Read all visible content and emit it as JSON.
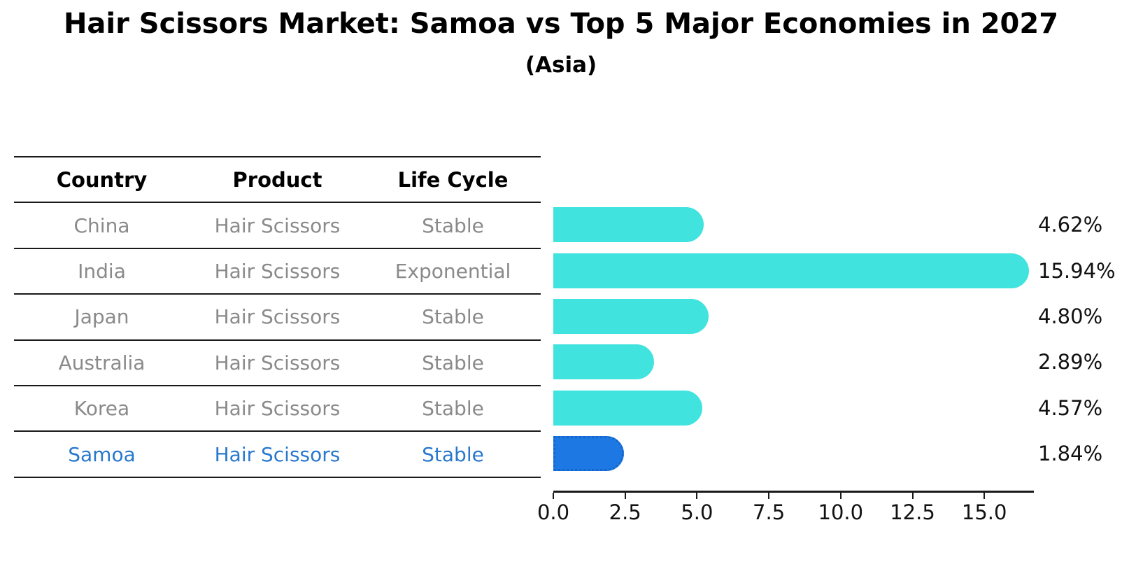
{
  "title": "Hair Scissors Market: Samoa vs Top 5 Major Economies in 2027",
  "subtitle": "(Asia)",
  "table": {
    "headers": [
      "Country",
      "Product",
      "Life Cycle"
    ],
    "rows": [
      {
        "country": "China",
        "product": "Hair Scissors",
        "life_cycle": "Stable",
        "highlight": false
      },
      {
        "country": "India",
        "product": "Hair Scissors",
        "life_cycle": "Exponential",
        "highlight": false
      },
      {
        "country": "Japan",
        "product": "Hair Scissors",
        "life_cycle": "Stable",
        "highlight": false
      },
      {
        "country": "Australia",
        "product": "Hair Scissors",
        "life_cycle": "Stable",
        "highlight": false
      },
      {
        "country": "Korea",
        "product": "Hair Scissors",
        "life_cycle": "Stable",
        "highlight": false
      },
      {
        "country": "Samoa",
        "product": "Hair Scissors",
        "life_cycle": "Stable",
        "highlight": true
      }
    ]
  },
  "chart_data": {
    "type": "bar",
    "orientation": "horizontal",
    "categories": [
      "China",
      "India",
      "Japan",
      "Australia",
      "Korea",
      "Samoa"
    ],
    "values": [
      4.62,
      15.94,
      4.8,
      2.89,
      4.57,
      1.84
    ],
    "value_labels": [
      "4.62%",
      "15.94%",
      "4.80%",
      "2.89%",
      "4.57%",
      "1.84%"
    ],
    "x_tick_values": [
      0.0,
      2.5,
      5.0,
      7.5,
      10.0,
      12.5,
      15.0
    ],
    "x_tick_labels": [
      "0.0",
      "2.5",
      "5.0",
      "7.5",
      "10.0",
      "12.5",
      "15.0"
    ],
    "xlim": [
      0,
      16.7
    ],
    "highlight_index": 5,
    "grid": false,
    "legend": false,
    "title": "Hair Scissors Market: Samoa vs Top 5 Major Economies in 2027",
    "subtitle": "(Asia)",
    "xlabel": "",
    "ylabel": ""
  },
  "colors": {
    "bar": "#40e3de",
    "highlight_bar": "#1e78e3",
    "highlight_bar_border": "#1565cc",
    "highlight_text": "#2878cd",
    "table_text": "#8a8a8a",
    "heading_text": "#000000",
    "axis": "#1a1a1a"
  }
}
